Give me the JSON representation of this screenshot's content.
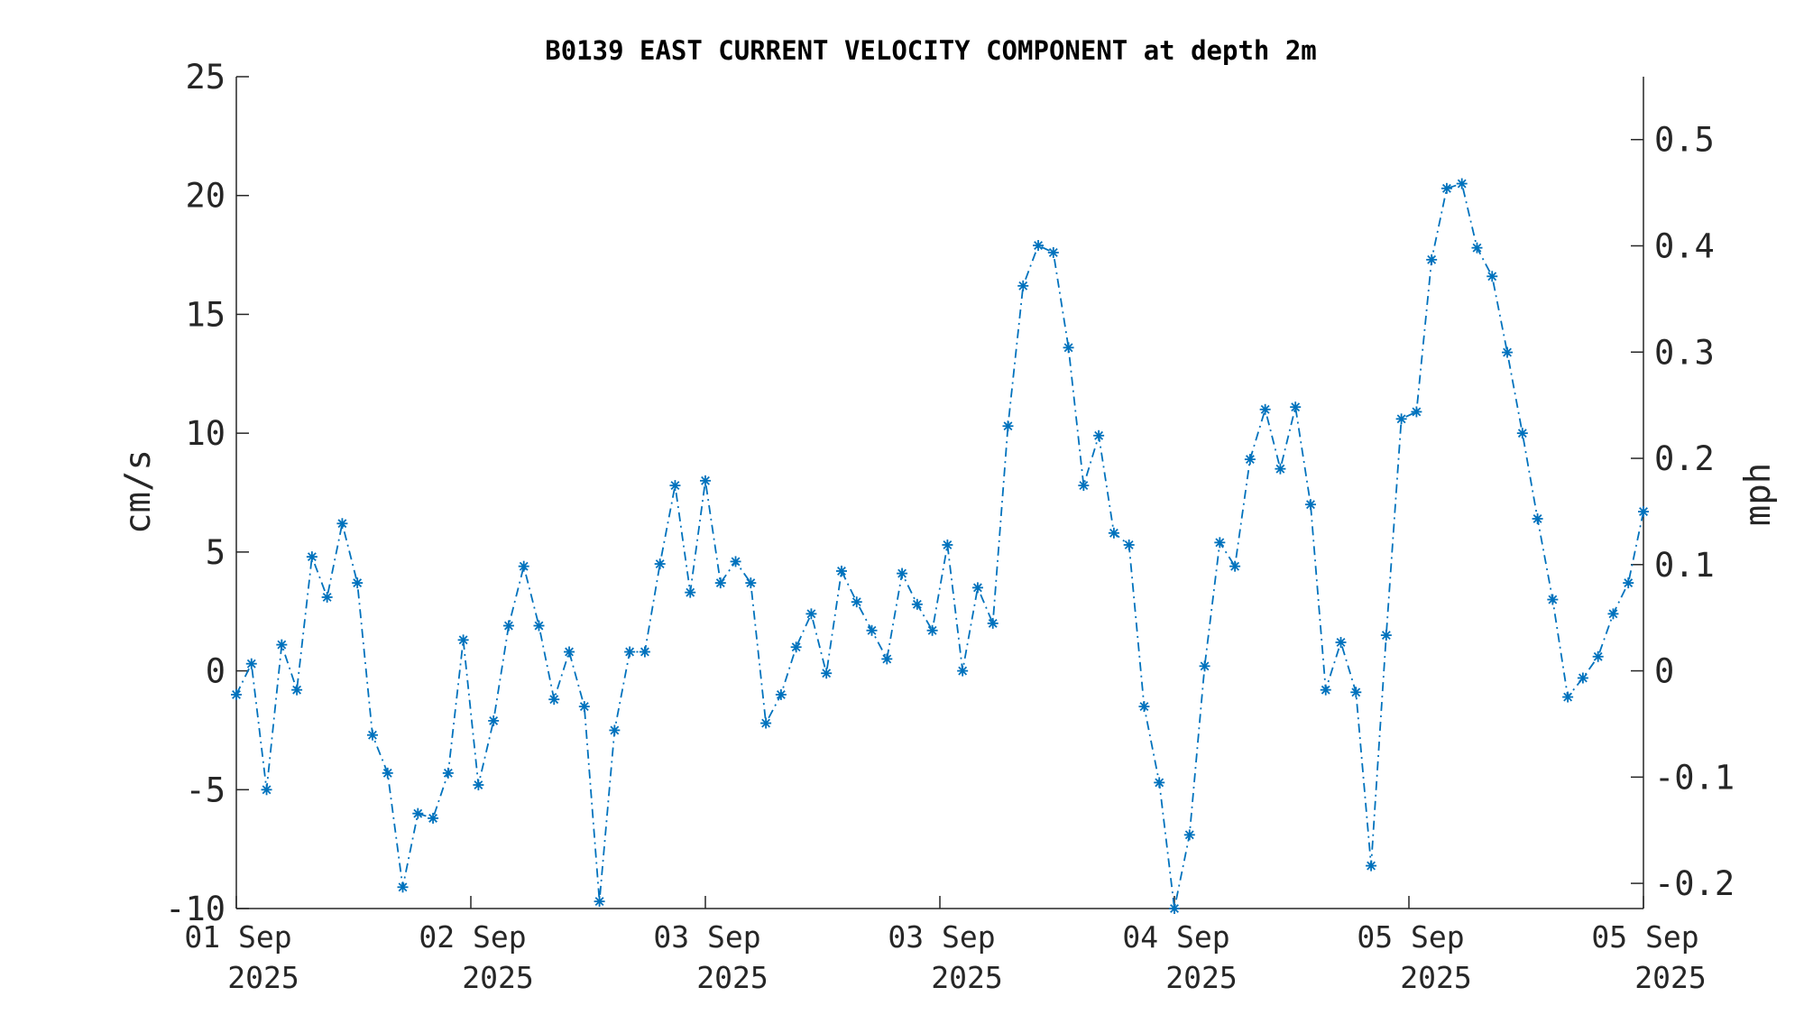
{
  "chart_data": {
    "type": "line",
    "title": "B0139 EAST CURRENT VELOCITY COMPONENT at depth 2m",
    "ylabel_left": "cm/s",
    "ylabel_right": "mph",
    "ylim": [
      -10,
      25
    ],
    "yticks_left": [
      -10,
      -5,
      0,
      5,
      10,
      15,
      20,
      25
    ],
    "yticks_left_labels": [
      "-10",
      "-5",
      "0",
      "5",
      "10",
      "15",
      "20",
      "25"
    ],
    "ylim_right_mph": [
      -0.2237,
      0.5592
    ],
    "yticks_right": [
      -0.2,
      -0.1,
      0,
      0.1,
      0.2,
      0.3,
      0.4,
      0.5
    ],
    "yticks_right_labels": [
      "-0.2",
      "-0.1",
      "0",
      "0.1",
      "0.2",
      "0.3",
      "0.4",
      "0.5"
    ],
    "xtick_labels": [
      [
        "01 Sep",
        "2025"
      ],
      [
        "02 Sep",
        "2025"
      ],
      [
        "03 Sep",
        "2025"
      ],
      [
        "03 Sep",
        "2025"
      ],
      [
        "04 Sep",
        "2025"
      ],
      [
        "05 Sep",
        "2025"
      ],
      [
        "05 Sep",
        "2025"
      ]
    ],
    "color": "#0072BD",
    "marker": "asterisk",
    "line_style": "dash-dot",
    "grid": false,
    "series": [
      {
        "values": [
          -1.0,
          0.3,
          -5.0,
          1.1,
          -0.8,
          4.8,
          3.1,
          6.2,
          3.7,
          -2.7,
          -4.3,
          -9.1,
          -6.0,
          -6.2,
          -4.3,
          1.3,
          -4.8,
          -2.1,
          1.9,
          4.4,
          1.9,
          -1.2,
          0.8,
          -1.5,
          -9.7,
          -2.5,
          0.8,
          0.8,
          4.5,
          7.8,
          3.3,
          8.0,
          3.7,
          4.6,
          3.7,
          -2.2,
          -1.0,
          1.0,
          2.4,
          -0.1,
          4.2,
          2.9,
          1.7,
          0.5,
          4.1,
          2.8,
          1.7,
          5.3,
          0.0,
          3.5,
          2.0,
          10.3,
          16.2,
          17.9,
          17.6,
          13.6,
          7.8,
          9.9,
          5.8,
          5.3,
          -1.5,
          -4.7,
          -10.0,
          -6.9,
          0.2,
          5.4,
          4.4,
          8.9,
          11.0,
          8.5,
          11.1,
          7.0,
          -0.8,
          1.2,
          -0.9,
          -8.2,
          1.5,
          10.6,
          10.9,
          17.3,
          20.3,
          20.5,
          17.8,
          16.6,
          13.4,
          10.0,
          6.4,
          3.0,
          -1.1,
          -0.3,
          0.6,
          2.4,
          3.7,
          6.7
        ]
      }
    ]
  }
}
